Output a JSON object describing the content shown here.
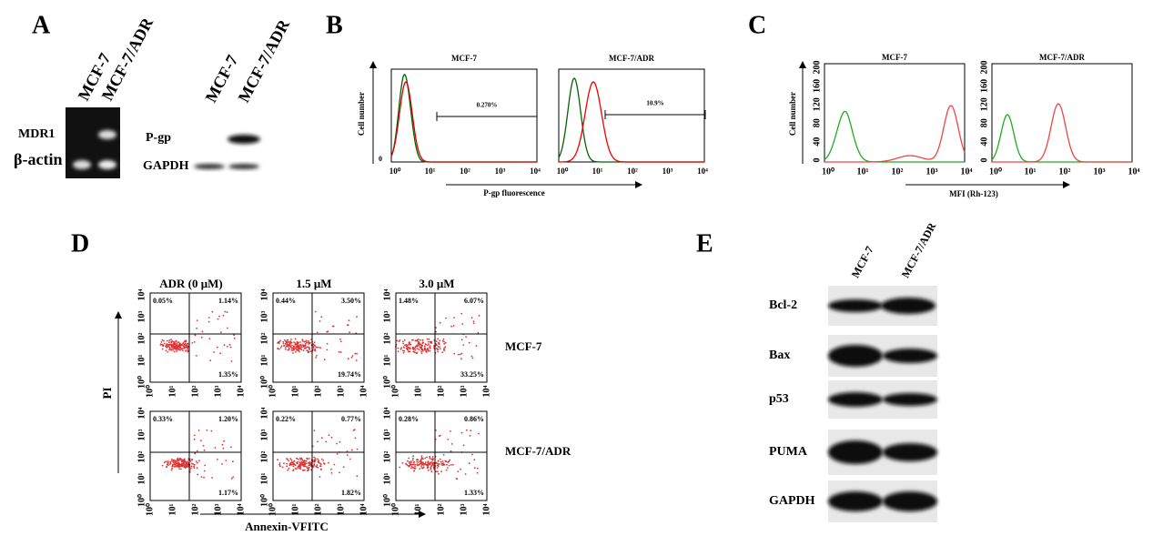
{
  "panels": {
    "A": {
      "label": "A",
      "pcr_lanes": [
        "MCF-7",
        "MCF-7/ADR"
      ],
      "pcr_rows": [
        "MDR1",
        "β-actin"
      ],
      "wb_lanes": [
        "MCF-7",
        "MCF-7/ADR"
      ],
      "wb_rows": [
        "P-gp",
        "GAPDH"
      ]
    },
    "B": {
      "label": "B",
      "plots": [
        {
          "title": "MCF-7",
          "gate": "0.270%"
        },
        {
          "title": "MCF-7/ADR",
          "gate": "10.9%"
        }
      ],
      "ylabel": "Cell number",
      "xlabel": "P-gp fluorescence",
      "yticks": [
        "0"
      ],
      "xticks": [
        "10⁰",
        "10¹",
        "10²",
        "10³",
        "10⁴"
      ]
    },
    "C": {
      "label": "C",
      "plots": [
        {
          "title": "MCF-7"
        },
        {
          "title": "MCF-7/ADR"
        }
      ],
      "ylabel": "Cell number",
      "xlabel": "MFI (Rh-123)",
      "yticks": [
        "0",
        "40",
        "80",
        "120",
        "160",
        "200"
      ],
      "xticks": [
        "10⁰",
        "10¹",
        "10²",
        "10³",
        "10⁴"
      ]
    },
    "D": {
      "label": "D",
      "columns": [
        "ADR (0 μM)",
        "1.5 μM",
        "3.0 μM"
      ],
      "rows": [
        "MCF-7",
        "MCF-7/ADR"
      ],
      "quadrants": [
        [
          [
            "0.05%",
            "1.14%",
            "1.35%"
          ],
          [
            "0.44%",
            "3.50%",
            "19.74%"
          ],
          [
            "1.48%",
            "6.07%",
            "33.25%"
          ]
        ],
        [
          [
            "0.33%",
            "1.20%",
            "1.17%"
          ],
          [
            "0.22%",
            "0.77%",
            "1.82%"
          ],
          [
            "0.28%",
            "0.86%",
            "1.33%"
          ]
        ]
      ],
      "ylabel": "PI",
      "xlabel": "Annexin-VFITC",
      "ticks": [
        "10⁰",
        "10¹",
        "10²",
        "10³",
        "10⁴"
      ]
    },
    "E": {
      "label": "E",
      "lanes": [
        "MCF-7",
        "MCF-7/ADR"
      ],
      "rows": [
        "Bcl-2",
        "Bax",
        "p53",
        "PUMA",
        "GAPDH"
      ]
    }
  }
}
